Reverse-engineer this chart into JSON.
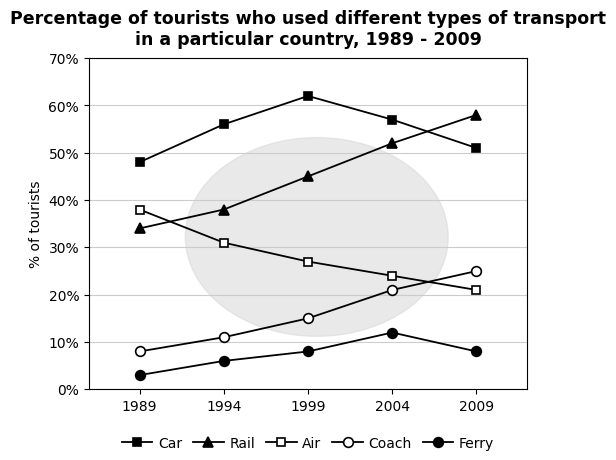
{
  "title": "Percentage of tourists who used different types of transport\nin a particular country, 1989 - 2009",
  "ylabel": "% of tourists",
  "years": [
    1989,
    1994,
    1999,
    2004,
    2009
  ],
  "series": {
    "Car": [
      48,
      56,
      62,
      57,
      51
    ],
    "Rail": [
      34,
      38,
      45,
      52,
      58
    ],
    "Air": [
      38,
      31,
      27,
      24,
      21
    ],
    "Coach": [
      8,
      11,
      15,
      21,
      25
    ],
    "Ferry": [
      3,
      6,
      8,
      12,
      8
    ]
  },
  "markers": {
    "Car": "s",
    "Rail": "^",
    "Air": "s",
    "Coach": "o",
    "Ferry": "o"
  },
  "marker_fill": {
    "Car": "black",
    "Rail": "black",
    "Air": "white",
    "Coach": "white",
    "Ferry": "black"
  },
  "line_color": "black",
  "ylim": [
    0,
    70
  ],
  "yticks": [
    0,
    10,
    20,
    30,
    40,
    50,
    60,
    70
  ],
  "ytick_labels": [
    "0%",
    "10%",
    "20%",
    "30%",
    "40%",
    "50%",
    "60%",
    "70%"
  ],
  "background_color": "#ffffff",
  "title_fontsize": 12.5,
  "axis_fontsize": 10,
  "legend_fontsize": 10
}
